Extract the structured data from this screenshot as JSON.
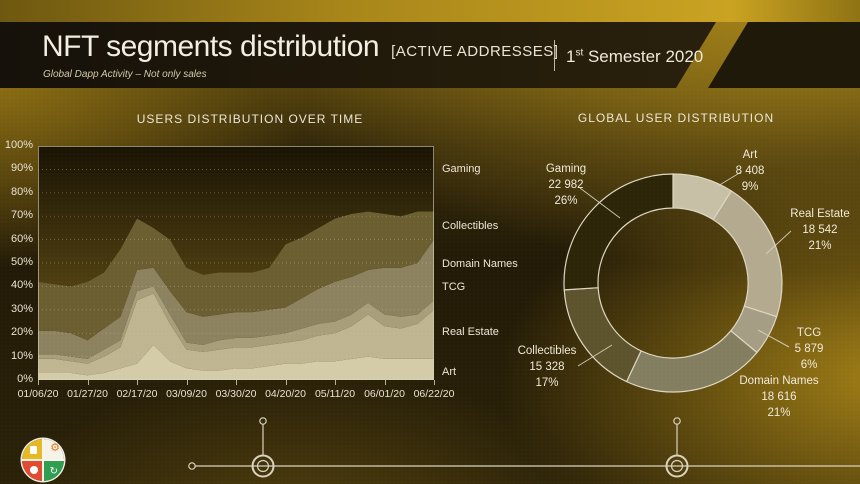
{
  "header": {
    "title": "NFT segments distribution",
    "title_suffix": "[ACTIVE ADDRESSES]",
    "subtitle": "Global Dapp Activity – Not only sales",
    "period_number": "1",
    "period_sup": "st",
    "period_rest": " Semester 2020"
  },
  "colors": {
    "background_gold": "#ab881c",
    "background_dark": "#221a07",
    "header_band": "#1d1708",
    "text": "#ece6d6",
    "axis_line": "#d8d2c0"
  },
  "chart_data": [
    {
      "type": "area",
      "stacked": true,
      "unit": "percent",
      "title": "USERS DISTRIBUTION OVER TIME",
      "x": [
        "01/06/20",
        "01/13/20",
        "01/20/20",
        "01/27/20",
        "02/03/20",
        "02/10/20",
        "02/17/20",
        "02/24/20",
        "03/02/20",
        "03/09/20",
        "03/16/20",
        "03/23/20",
        "03/30/20",
        "04/06/20",
        "04/13/20",
        "04/20/20",
        "04/27/20",
        "05/04/20",
        "05/11/20",
        "05/18/20",
        "05/25/20",
        "06/01/20",
        "06/08/20",
        "06/15/20",
        "06/22/20"
      ],
      "x_tick_labels": [
        "01/06/20",
        "01/27/20",
        "02/17/20",
        "03/09/20",
        "03/30/20",
        "04/20/20",
        "05/11/20",
        "06/01/20",
        "06/22/20"
      ],
      "y_tick_labels": [
        "0%",
        "10%",
        "20%",
        "30%",
        "40%",
        "50%",
        "60%",
        "70%",
        "80%",
        "90%",
        "100%"
      ],
      "ylim": [
        0,
        100
      ],
      "grid": true,
      "series": [
        {
          "name": "Art",
          "color": "#d4cca9",
          "values": [
            3,
            3,
            3,
            2,
            3,
            5,
            7,
            15,
            8,
            5,
            4,
            4,
            5,
            5,
            6,
            7,
            7,
            8,
            8,
            9,
            10,
            9,
            9,
            9,
            9
          ]
        },
        {
          "name": "Real Estate",
          "color": "#bfb590",
          "values": [
            6,
            6,
            5,
            5,
            7,
            9,
            27,
            22,
            16,
            8,
            8,
            9,
            9,
            9,
            9,
            9,
            10,
            11,
            12,
            14,
            18,
            14,
            13,
            15,
            21
          ]
        },
        {
          "name": "TCG",
          "color": "#a89e79",
          "values": [
            2,
            2,
            2,
            2,
            3,
            3,
            4,
            3,
            4,
            3,
            3,
            4,
            4,
            4,
            4,
            4,
            5,
            5,
            5,
            5,
            5,
            5,
            5,
            4,
            4
          ]
        },
        {
          "name": "Domain Names",
          "color": "#8d8260",
          "values": [
            10,
            10,
            10,
            8,
            9,
            10,
            9,
            8,
            10,
            13,
            12,
            11,
            11,
            11,
            11,
            11,
            13,
            15,
            17,
            16,
            14,
            20,
            21,
            22,
            26
          ]
        },
        {
          "name": "Collectibles",
          "color": "#6b5e31",
          "values": [
            21,
            20,
            20,
            25,
            24,
            29,
            22,
            17,
            22,
            19,
            18,
            18,
            17,
            17,
            18,
            27,
            26,
            26,
            27,
            27,
            25,
            23,
            22,
            22,
            12
          ]
        },
        {
          "name": "Gaming",
          "color": "#3a2f0a",
          "values": [
            58,
            59,
            60,
            58,
            54,
            44,
            31,
            35,
            40,
            52,
            55,
            54,
            54,
            54,
            52,
            42,
            39,
            35,
            31,
            29,
            28,
            29,
            30,
            28,
            28
          ]
        }
      ]
    },
    {
      "type": "donut",
      "title": "GLOBAL  USER  DISTRIBUTION",
      "clockwise": true,
      "start_angle_deg": 0,
      "segments": [
        {
          "name": "Art",
          "value": "8 408",
          "pct": 9,
          "color": "#c8c0a6"
        },
        {
          "name": "Real Estate",
          "value": "18 542",
          "pct": 21,
          "color": "#b3aa8f"
        },
        {
          "name": "TCG",
          "value": "5 879",
          "pct": 6,
          "color": "#a59d84"
        },
        {
          "name": "Domain Names",
          "value": "18 616",
          "pct": 21,
          "color": "#847e60"
        },
        {
          "name": "Collectibles",
          "value": "15 328",
          "pct": 17,
          "color": "#5d532c"
        },
        {
          "name": "Gaming",
          "value": "22 982",
          "pct": 26,
          "color": "#2d2507"
        }
      ]
    }
  ]
}
